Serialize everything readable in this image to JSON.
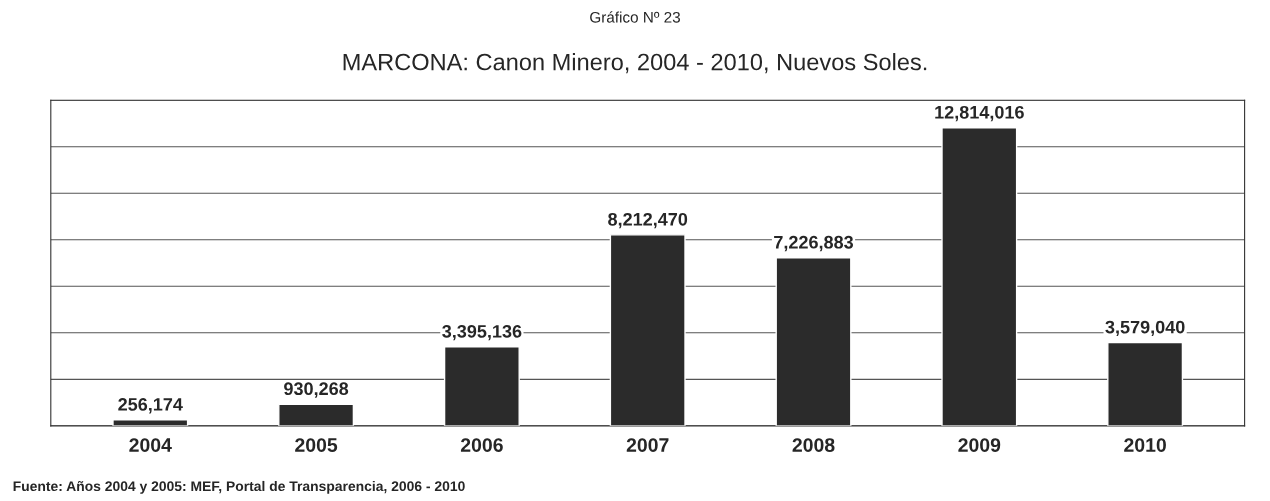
{
  "chart_data": {
    "type": "bar",
    "title": "MARCONA: Canon Minero, 2004 - 2010, Nuevos Soles.",
    "subtitle": "Gráfico Nº 23",
    "categories": [
      "2004",
      "2005",
      "2006",
      "2007",
      "2008",
      "2009",
      "2010"
    ],
    "values": [
      256174,
      930268,
      3395136,
      8212470,
      7226883,
      12814016,
      3579040
    ],
    "value_labels": [
      "256,174",
      "930,268",
      "3,395,136",
      "8,212,470",
      "7,226,883",
      "12,814,016",
      "3,579,040"
    ],
    "color": "#2b2b2b",
    "ylim": [
      0,
      14000000
    ],
    "yticks": [
      {
        "value": 0,
        "label": null
      },
      {
        "value": 2000000,
        "label": null
      },
      {
        "value": 4000000,
        "label": null
      },
      {
        "value": 6000000,
        "label": null
      },
      {
        "value": 8000000,
        "label": null
      },
      {
        "value": 10000000,
        "label": null
      },
      {
        "value": 12000000,
        "label": null
      },
      {
        "value": 14000000,
        "label": null
      }
    ],
    "tick_labels": "x",
    "grid": "y",
    "annotations": [
      "Fuente: Años 2004 y 2005: MEF, Portal de Transparencia, 2006 - 2010"
    ]
  }
}
